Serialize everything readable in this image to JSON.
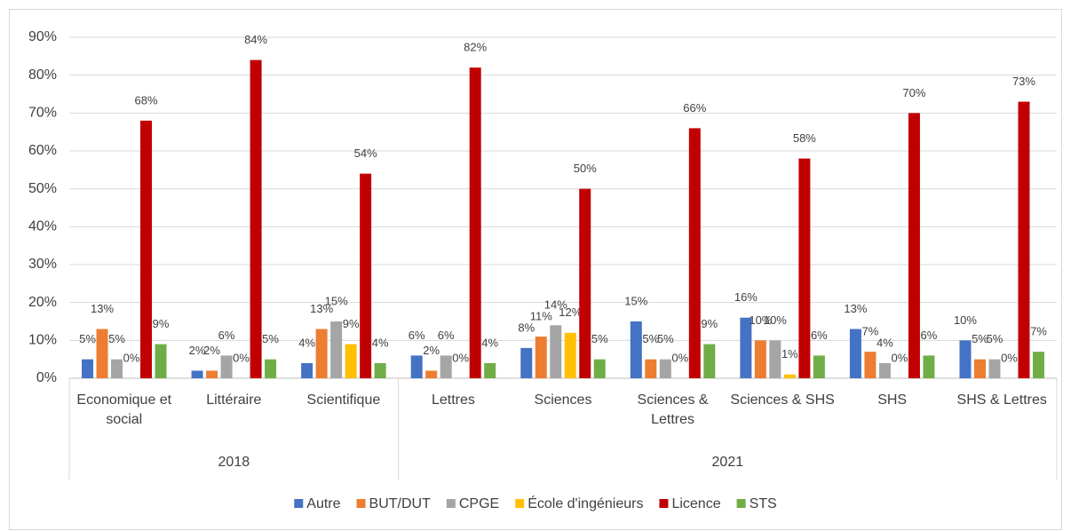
{
  "chart_data": {
    "type": "bar",
    "groups": [
      {
        "name": "2018",
        "categories": [
          "Economique et social",
          "Littéraire",
          "Scientifique"
        ]
      },
      {
        "name": "2021",
        "categories": [
          "Lettres",
          "Sciences",
          "Sciences & Lettres",
          "Sciences & SHS",
          "SHS",
          "SHS & Lettres"
        ]
      }
    ],
    "series": [
      {
        "name": "Autre",
        "color": "#4472c4",
        "values": [
          5,
          2,
          4,
          6,
          8,
          15,
          16,
          13,
          10
        ],
        "value_labels": [
          "5%",
          "2%",
          "4%",
          "6%",
          "8%",
          "15%",
          "16%",
          "13%",
          "10%"
        ]
      },
      {
        "name": "BUT/DUT",
        "color": "#ed7d31",
        "values": [
          13,
          2,
          13,
          2,
          11,
          5,
          10,
          7,
          5
        ],
        "value_labels": [
          "13%",
          "2%",
          "13%",
          "2%",
          "11%",
          "5%",
          "10%",
          "7%",
          "5%"
        ]
      },
      {
        "name": "CPGE",
        "color": "#a5a5a5",
        "values": [
          5,
          6,
          15,
          6,
          14,
          5,
          10,
          4,
          5
        ],
        "value_labels": [
          "5%",
          "6%",
          "15%",
          "6%",
          "14%",
          "5%",
          "10%",
          "4%",
          "5%"
        ]
      },
      {
        "name": "École d'ingénieurs",
        "color": "#ffc000",
        "values": [
          0,
          0,
          9,
          0,
          12,
          0,
          1,
          0,
          0
        ],
        "value_labels": [
          "0%",
          "0%",
          "9%",
          "0%",
          "12%",
          "0%",
          "1%",
          "0%",
          "0%"
        ]
      },
      {
        "name": "Licence",
        "color": "#c00000",
        "values": [
          68,
          84,
          54,
          82,
          50,
          66,
          58,
          70,
          73
        ],
        "value_labels": [
          "68%",
          "84%",
          "54%",
          "82%",
          "50%",
          "66%",
          "58%",
          "70%",
          "73%"
        ]
      },
      {
        "name": "STS",
        "color": "#70ad47",
        "values": [
          9,
          5,
          4,
          4,
          5,
          9,
          6,
          6,
          7
        ],
        "value_labels": [
          "9%",
          "5%",
          "4%",
          "4%",
          "5%",
          "9%",
          "6%",
          "6%",
          "7%"
        ]
      }
    ],
    "ylim": [
      0,
      90
    ],
    "yticks": [
      {
        "value": 0,
        "label": "0%"
      },
      {
        "value": 10,
        "label": "10%"
      },
      {
        "value": 20,
        "label": "20%"
      },
      {
        "value": 30,
        "label": "30%"
      },
      {
        "value": 40,
        "label": "40%"
      },
      {
        "value": 50,
        "label": "50%"
      },
      {
        "value": 60,
        "label": "60%"
      },
      {
        "value": 70,
        "label": "70%"
      },
      {
        "value": 80,
        "label": "80%"
      },
      {
        "value": 90,
        "label": "90%"
      }
    ],
    "grid": true,
    "legend": "bottom"
  }
}
